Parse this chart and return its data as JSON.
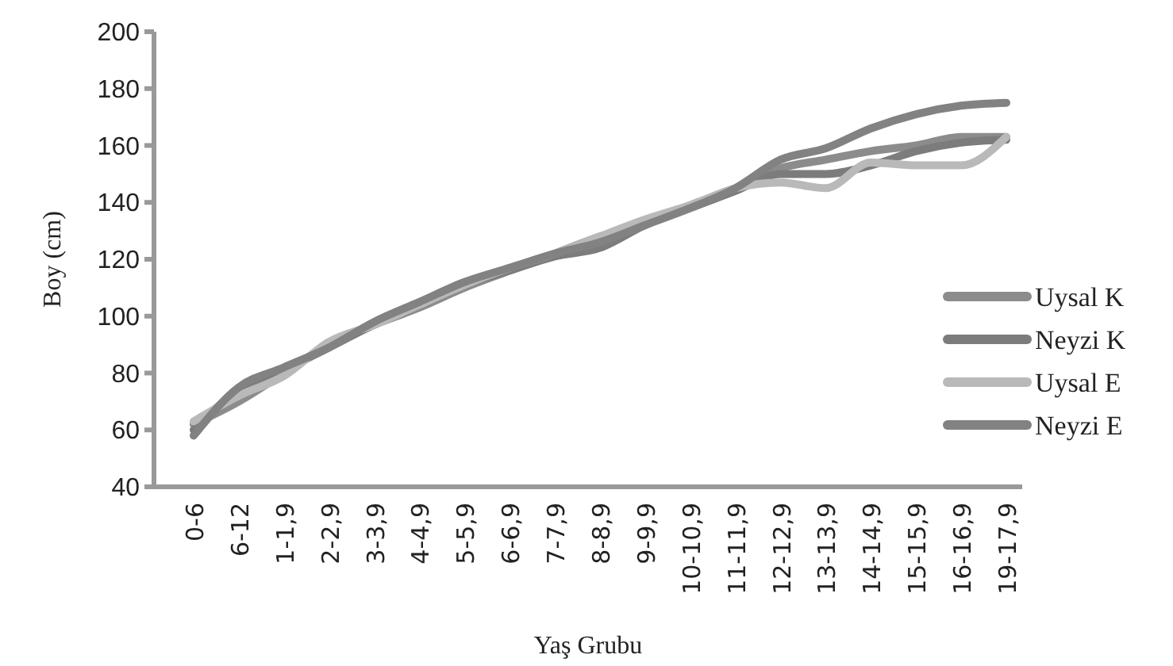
{
  "chart_data": {
    "type": "line",
    "xlabel": "Yaş Grubu",
    "ylabel": "Boy (cm)",
    "categories": [
      "0-6",
      "6-12",
      "1-1,9",
      "2-2,9",
      "3-3,9",
      "4-4,9",
      "5-5,9",
      "6-6,9",
      "7-7,9",
      "8-8,9",
      "9-9,9",
      "10-10,9",
      "11-11,9",
      "12-12,9",
      "13-13,9",
      "14-14,9",
      "15-15,9",
      "16-16,9",
      "19-17,9"
    ],
    "series": [
      {
        "name": "Uysal K",
        "color": "#8c8c8c",
        "values": [
          62,
          70,
          80,
          90,
          97,
          103,
          110,
          116,
          122,
          128,
          133,
          139,
          145,
          152,
          155,
          158,
          160,
          163,
          163
        ]
      },
      {
        "name": "Neyzi K",
        "color": "#7c7c7c",
        "values": [
          60,
          74,
          81,
          89,
          97,
          104,
          111,
          116,
          121,
          124,
          132,
          138,
          144,
          150,
          150,
          153,
          158,
          161,
          162
        ]
      },
      {
        "name": "Uysal E",
        "color": "#b9b9b9",
        "values": [
          63,
          72,
          79,
          91,
          97,
          104,
          111,
          117,
          122,
          128,
          134,
          139,
          145,
          147,
          145,
          154,
          153,
          153,
          163
        ]
      },
      {
        "name": "Neyzi E",
        "color": "#828282",
        "values": [
          58,
          75,
          82,
          89,
          98,
          105,
          112,
          117,
          122,
          126,
          132,
          138,
          145,
          155,
          159,
          166,
          171,
          174,
          175
        ]
      }
    ],
    "ylim": [
      40,
      200
    ],
    "yticks": [
      40,
      60,
      80,
      100,
      120,
      140,
      160,
      180,
      200
    ],
    "legend": "right",
    "grid": false
  }
}
